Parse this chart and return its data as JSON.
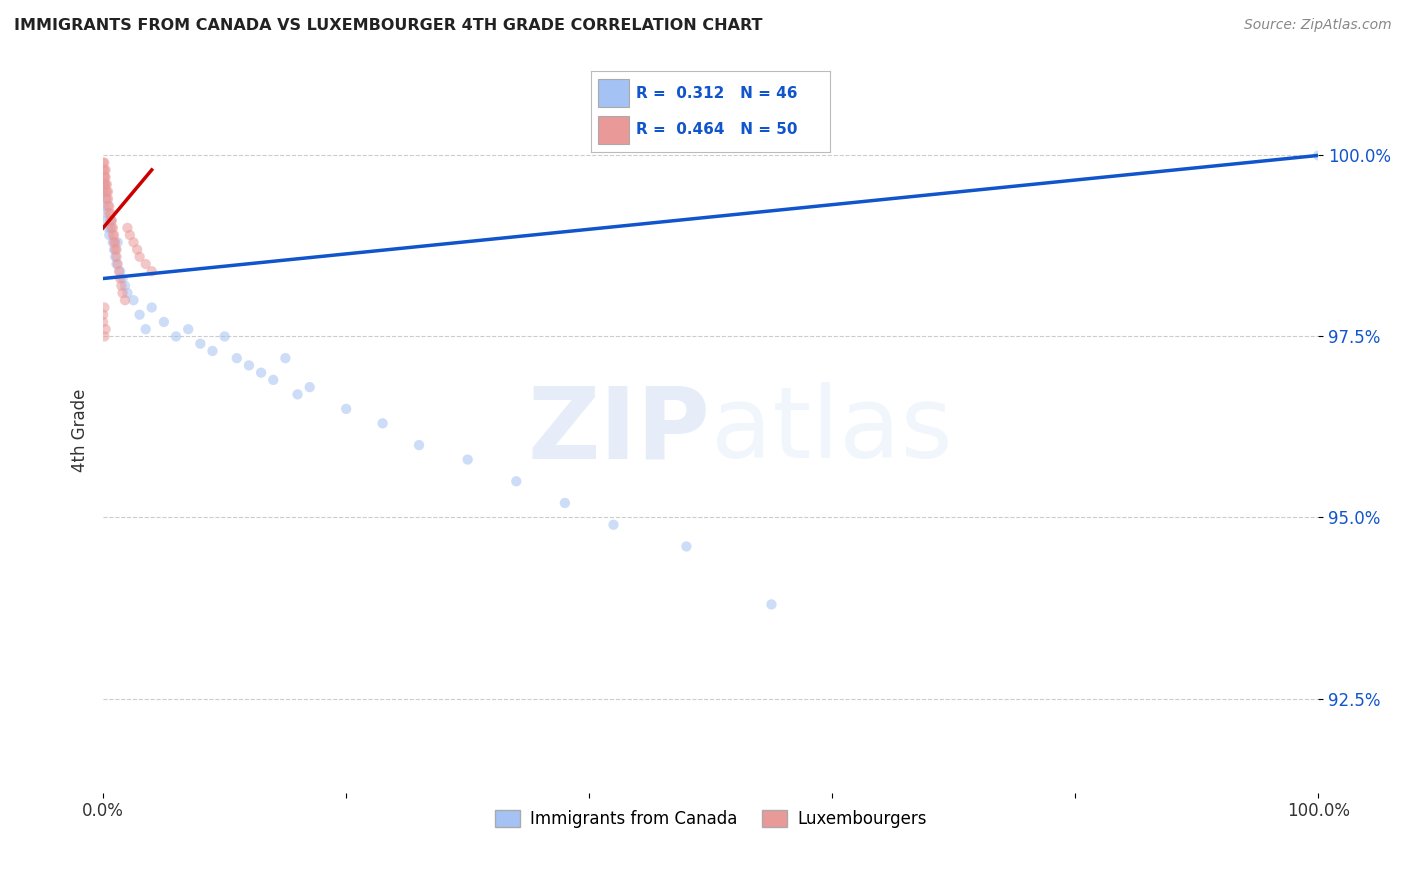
{
  "title": "IMMIGRANTS FROM CANADA VS LUXEMBOURGER 4TH GRADE CORRELATION CHART",
  "source": "Source: ZipAtlas.com",
  "ylabel": "4th Grade",
  "ytick_values": [
    92.5,
    95.0,
    97.5,
    100.0
  ],
  "legend_blue_label": "Immigrants from Canada",
  "legend_pink_label": "Luxembourgers",
  "r_blue": "0.312",
  "n_blue": "46",
  "r_pink": "0.464",
  "n_pink": "50",
  "blue_color": "#a4c2f4",
  "pink_color": "#ea9999",
  "trend_blue_color": "#1155cc",
  "trend_pink_color": "#cc0000",
  "blue_scatter_x": [
    0.0,
    0.001,
    0.001,
    0.002,
    0.002,
    0.003,
    0.004,
    0.005,
    0.006,
    0.007,
    0.008,
    0.009,
    0.01,
    0.011,
    0.012,
    0.014,
    0.016,
    0.018,
    0.02,
    0.025,
    0.03,
    0.035,
    0.04,
    0.05,
    0.06,
    0.07,
    0.08,
    0.09,
    0.1,
    0.11,
    0.12,
    0.13,
    0.15,
    0.17,
    0.2,
    0.23,
    0.26,
    0.3,
    0.34,
    0.38,
    0.42,
    0.16,
    0.14,
    0.48,
    0.55,
    1.0
  ],
  "blue_scatter_y": [
    99.5,
    99.6,
    99.3,
    99.4,
    99.2,
    99.1,
    99.0,
    98.9,
    99.0,
    99.1,
    98.8,
    98.7,
    98.6,
    98.5,
    98.8,
    98.4,
    98.3,
    98.2,
    98.1,
    98.0,
    97.8,
    97.6,
    97.9,
    97.7,
    97.5,
    97.6,
    97.4,
    97.3,
    97.5,
    97.2,
    97.1,
    97.0,
    97.2,
    96.8,
    96.5,
    96.3,
    96.0,
    95.8,
    95.5,
    95.2,
    94.9,
    96.7,
    96.9,
    94.6,
    93.8,
    100.0
  ],
  "pink_scatter_x": [
    0.0,
    0.0,
    0.001,
    0.001,
    0.001,
    0.002,
    0.002,
    0.002,
    0.003,
    0.003,
    0.003,
    0.004,
    0.004,
    0.004,
    0.005,
    0.005,
    0.006,
    0.006,
    0.007,
    0.007,
    0.008,
    0.008,
    0.009,
    0.009,
    0.01,
    0.01,
    0.011,
    0.011,
    0.012,
    0.013,
    0.014,
    0.015,
    0.016,
    0.018,
    0.02,
    0.022,
    0.025,
    0.028,
    0.03,
    0.035,
    0.04,
    0.0,
    0.001,
    0.002,
    0.0,
    0.001,
    0.001,
    0.002,
    0.001,
    0.0
  ],
  "pink_scatter_y": [
    99.9,
    99.8,
    99.7,
    99.6,
    99.8,
    99.5,
    99.7,
    99.6,
    99.4,
    99.5,
    99.6,
    99.3,
    99.4,
    99.5,
    99.2,
    99.3,
    99.1,
    99.2,
    99.0,
    99.1,
    98.9,
    99.0,
    98.8,
    98.9,
    98.7,
    98.8,
    98.6,
    98.7,
    98.5,
    98.4,
    98.3,
    98.2,
    98.1,
    98.0,
    99.0,
    98.9,
    98.8,
    98.7,
    98.6,
    98.5,
    98.4,
    97.8,
    97.5,
    97.6,
    97.7,
    97.9,
    99.9,
    99.8,
    99.7,
    99.6
  ],
  "watermark_zip": "ZIP",
  "watermark_atlas": "atlas",
  "xlim": [
    0.0,
    1.0
  ],
  "ylim": [
    91.2,
    101.2
  ],
  "marker_size": 55,
  "marker_alpha": 0.55,
  "blue_trend_x0": 0.0,
  "blue_trend_x1": 1.0,
  "blue_trend_y0": 98.3,
  "blue_trend_y1": 100.0,
  "pink_trend_x0": 0.0,
  "pink_trend_x1": 0.04,
  "pink_trend_y0": 99.0,
  "pink_trend_y1": 99.8
}
